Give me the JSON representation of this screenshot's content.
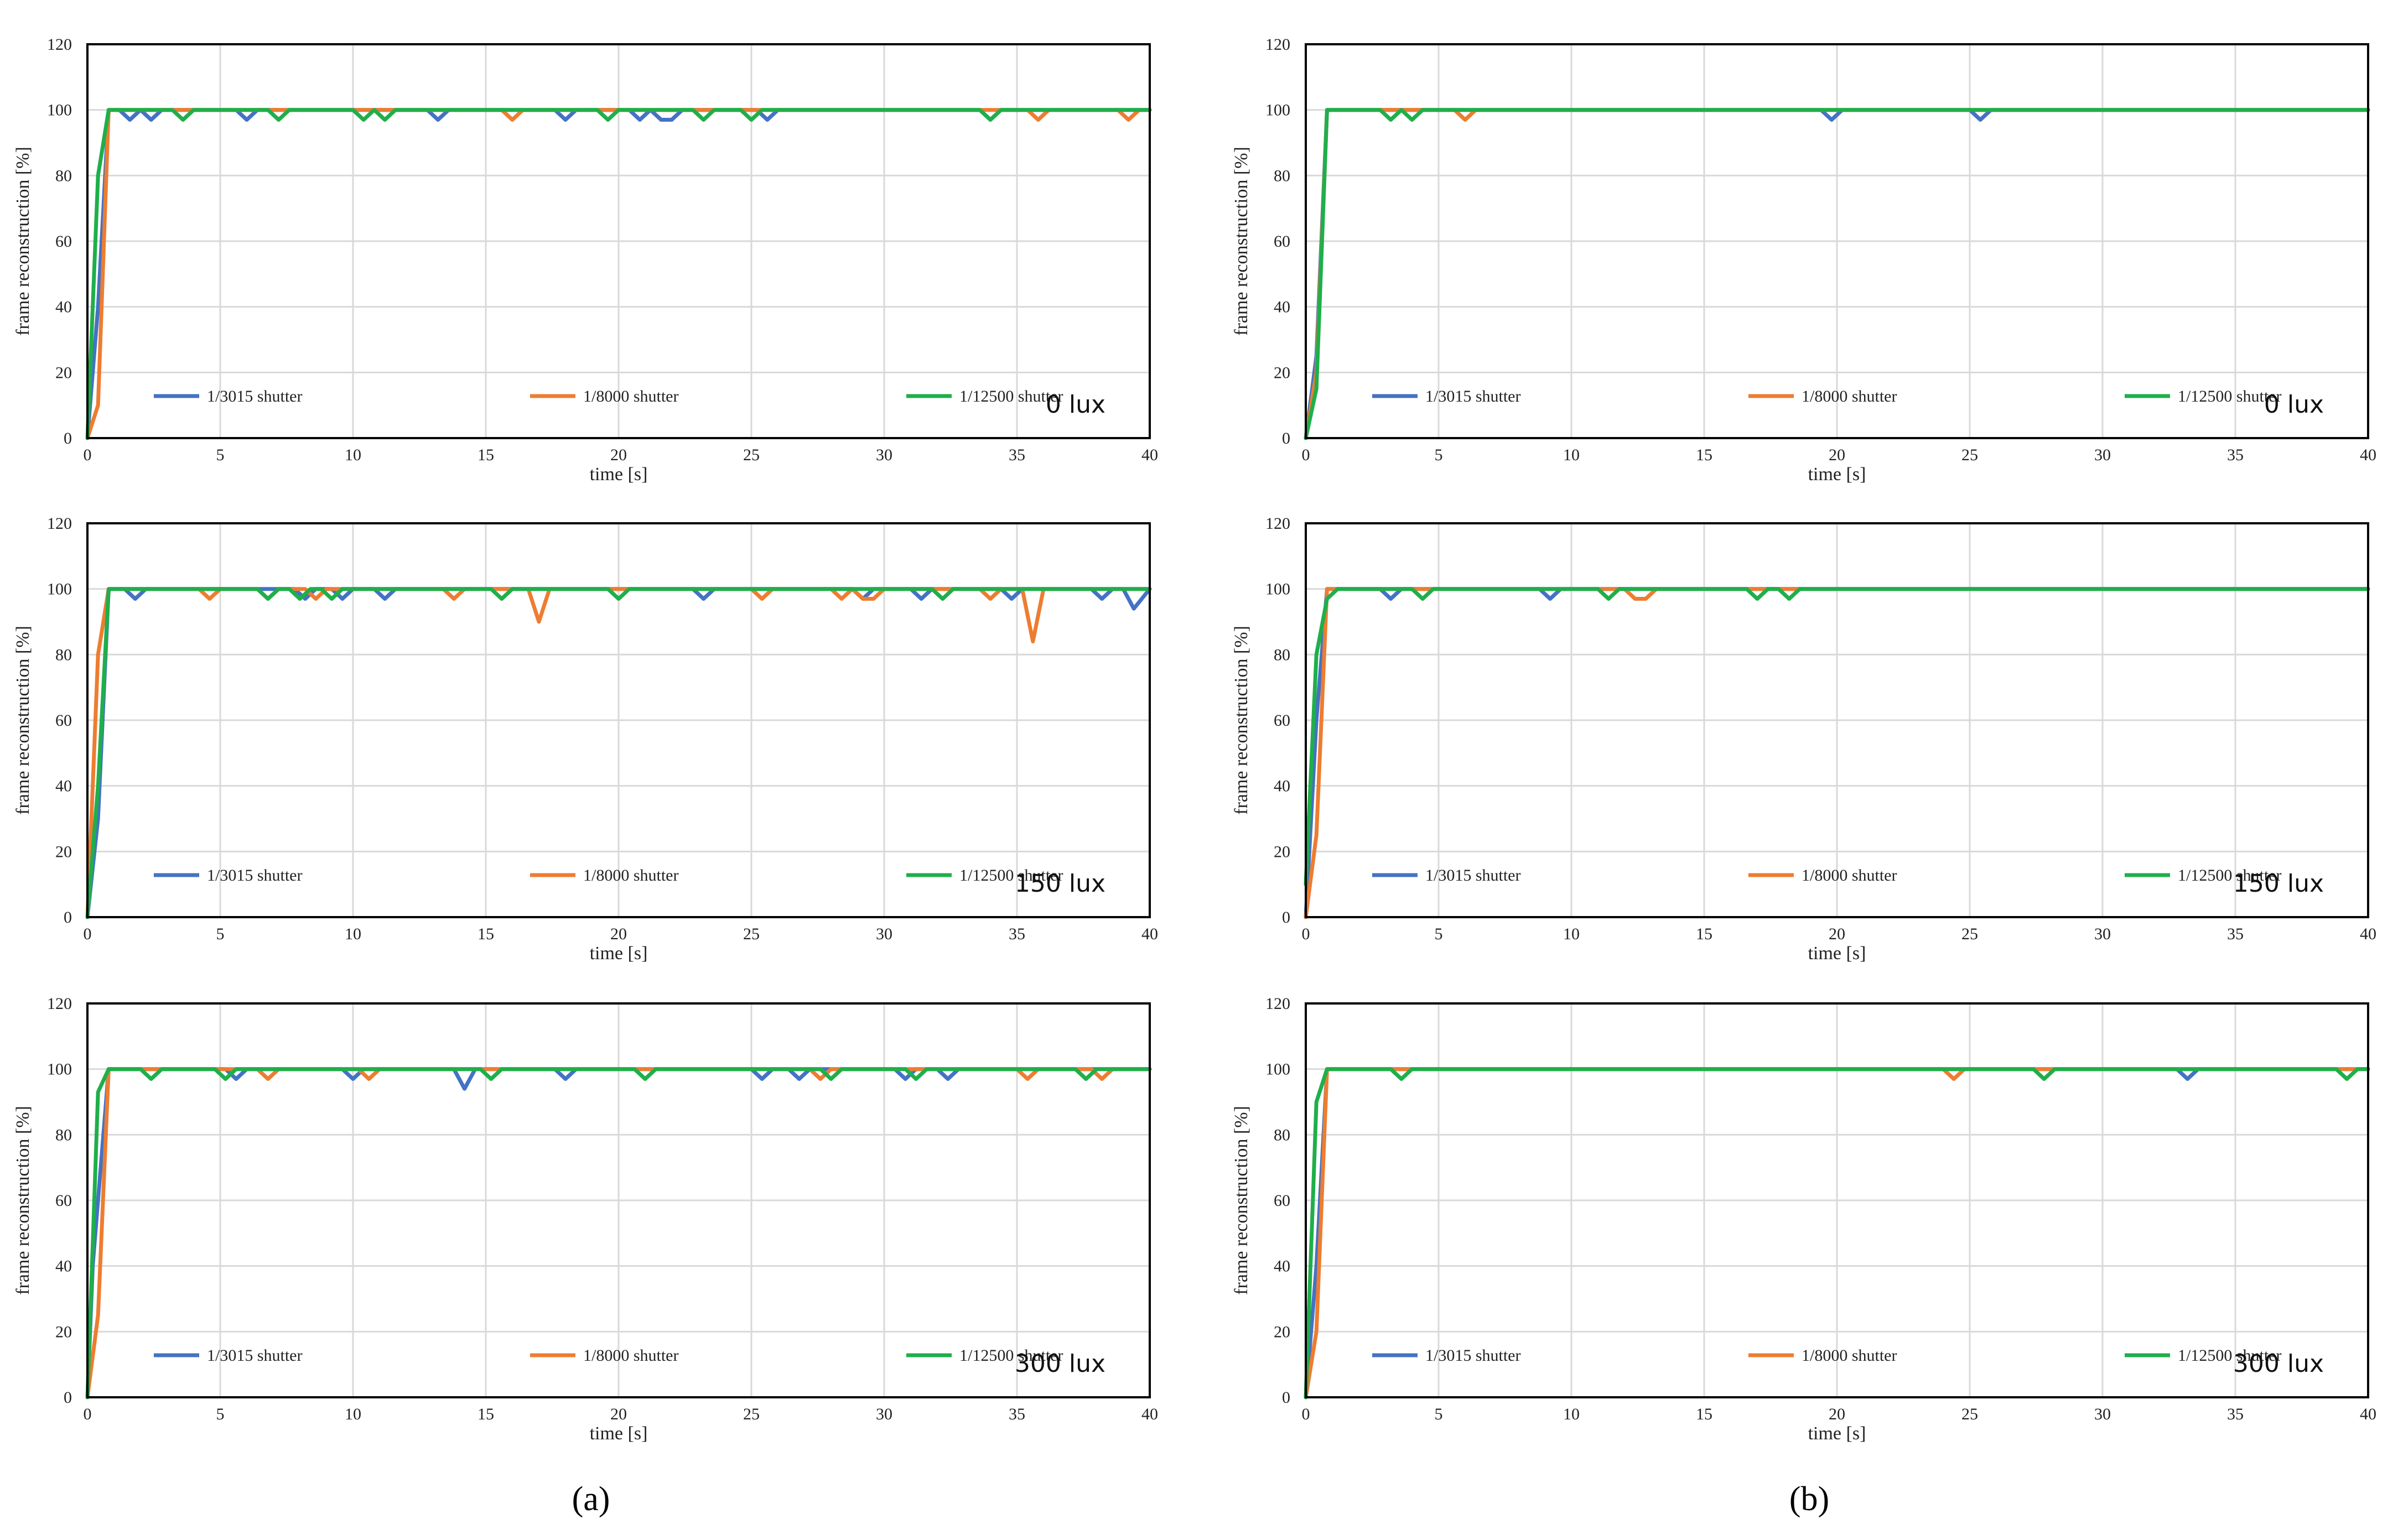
{
  "figure": {
    "panel_labels": [
      "(a)",
      "(b)"
    ]
  },
  "colors": {
    "series": [
      "#4472C4",
      "#ED7D31",
      "#1FAF4A"
    ],
    "grid": "#d9d9d9",
    "frame": "#000000"
  },
  "chart_data": [
    {
      "type": "line",
      "column": "a",
      "row": 0,
      "condition": "0 lux",
      "xlabel": "time [s]",
      "ylabel": "frame reconstruction [%]",
      "xlim": [
        0,
        40
      ],
      "ylim": [
        0,
        120
      ],
      "xticks": [
        0,
        5,
        10,
        15,
        20,
        25,
        30,
        35,
        40
      ],
      "yticks": [
        0,
        20,
        40,
        60,
        80,
        100,
        120
      ],
      "legend_position": "bottom-left",
      "series": [
        {
          "name": "1/3015 shutter",
          "x": [
            0,
            0.4,
            0.8,
            1.2,
            1.6,
            2.0,
            2.4,
            2.8,
            3.2,
            5.6,
            6.0,
            6.4,
            12.8,
            13.2,
            13.6,
            17.6,
            18.0,
            18.4,
            20.4,
            20.8,
            21.2,
            21.6,
            22.0,
            22.4,
            25.2,
            25.6,
            26.0,
            33.6,
            34.0,
            34.4,
            40
          ],
          "values": [
            0,
            40,
            100,
            100,
            97,
            100,
            97,
            100,
            100,
            100,
            97,
            100,
            100,
            97,
            100,
            100,
            97,
            100,
            100,
            97,
            100,
            97,
            97,
            100,
            100,
            97,
            100,
            100,
            97,
            100,
            100
          ]
        },
        {
          "name": "1/8000 shutter",
          "x": [
            0,
            0.4,
            0.8,
            1.2,
            15.6,
            16.0,
            16.4,
            19.6,
            20.0,
            35.4,
            35.8,
            36.2,
            38.8,
            39.2,
            39.6,
            40
          ],
          "values": [
            0,
            10,
            100,
            100,
            100,
            97,
            100,
            100,
            100,
            100,
            97,
            100,
            100,
            97,
            100,
            100
          ]
        },
        {
          "name": "1/12500 shutter",
          "x": [
            0,
            0.4,
            0.8,
            1.2,
            3.2,
            3.6,
            4.0,
            6.8,
            7.2,
            7.6,
            10.0,
            10.4,
            10.8,
            11.2,
            11.6,
            19.2,
            19.6,
            20.0,
            22.8,
            23.2,
            23.6,
            24.6,
            25.0,
            25.4,
            33.6,
            34.0,
            34.4,
            40
          ],
          "values": [
            0,
            80,
            100,
            100,
            100,
            97,
            100,
            100,
            97,
            100,
            100,
            97,
            100,
            97,
            100,
            100,
            97,
            100,
            100,
            97,
            100,
            100,
            97,
            100,
            100,
            97,
            100,
            100
          ]
        }
      ]
    },
    {
      "type": "line",
      "column": "a",
      "row": 1,
      "condition": "150 lux",
      "xlabel": "time [s]",
      "ylabel": "frame reconstruction [%]",
      "xlim": [
        0,
        40
      ],
      "ylim": [
        0,
        120
      ],
      "xticks": [
        0,
        5,
        10,
        15,
        20,
        25,
        30,
        35,
        40
      ],
      "yticks": [
        0,
        20,
        40,
        60,
        80,
        100,
        120
      ],
      "legend_position": "bottom-left",
      "series": [
        {
          "name": "1/3015 shutter",
          "x": [
            0,
            0.4,
            0.8,
            1.4,
            1.8,
            2.2,
            7.8,
            8.2,
            8.6,
            9.2,
            9.6,
            10.0,
            10.8,
            11.2,
            11.6,
            22.8,
            23.2,
            23.6,
            28.8,
            29.2,
            29.6,
            31.0,
            31.4,
            31.8,
            34.4,
            34.8,
            35.2,
            37.8,
            38.2,
            38.6,
            39.0,
            39.4,
            40
          ],
          "values": [
            0,
            30,
            100,
            100,
            97,
            100,
            100,
            97,
            100,
            100,
            97,
            100,
            100,
            97,
            100,
            100,
            97,
            100,
            100,
            97,
            100,
            100,
            97,
            100,
            100,
            97,
            100,
            100,
            97,
            100,
            100,
            94,
            100
          ]
        },
        {
          "name": "1/8000 shutter",
          "x": [
            0,
            0.4,
            0.8,
            4.2,
            4.6,
            5.0,
            6.4,
            6.8,
            7.2,
            8.2,
            8.6,
            9.0,
            13.4,
            13.8,
            14.2,
            16.6,
            17.0,
            17.4,
            25.0,
            25.4,
            25.8,
            28.0,
            28.4,
            28.8,
            29.2,
            29.6,
            30.0,
            33.6,
            34.0,
            34.4,
            35.2,
            35.6,
            36.0,
            40
          ],
          "values": [
            0,
            80,
            100,
            100,
            97,
            100,
            100,
            97,
            100,
            100,
            97,
            100,
            100,
            97,
            100,
            100,
            90,
            100,
            100,
            97,
            100,
            100,
            97,
            100,
            97,
            97,
            100,
            100,
            97,
            100,
            100,
            84,
            100,
            100
          ]
        },
        {
          "name": "1/12500 shutter",
          "x": [
            0,
            0.4,
            0.8,
            6.4,
            6.8,
            7.2,
            7.6,
            8.0,
            8.4,
            8.8,
            9.2,
            9.6,
            15.2,
            15.6,
            16.0,
            19.6,
            20.0,
            20.4,
            31.8,
            32.2,
            32.6,
            40
          ],
          "values": [
            0,
            40,
            100,
            100,
            97,
            100,
            100,
            97,
            100,
            100,
            97,
            100,
            100,
            97,
            100,
            100,
            97,
            100,
            100,
            97,
            100,
            100
          ]
        }
      ]
    },
    {
      "type": "line",
      "column": "a",
      "row": 2,
      "condition": "300 lux",
      "xlabel": "time [s]",
      "ylabel": "frame reconstruction [%]",
      "xlim": [
        0,
        40
      ],
      "ylim": [
        0,
        120
      ],
      "xticks": [
        0,
        5,
        10,
        15,
        20,
        25,
        30,
        35,
        40
      ],
      "yticks": [
        0,
        20,
        40,
        60,
        80,
        100,
        120
      ],
      "legend_position": "bottom-left",
      "series": [
        {
          "name": "1/3015 shutter",
          "x": [
            0,
            0.2,
            0.8,
            5.2,
            5.6,
            6.0,
            9.6,
            10.0,
            10.4,
            13.8,
            14.2,
            14.6,
            17.6,
            18.0,
            18.4,
            25.0,
            25.4,
            25.8,
            26.4,
            26.8,
            27.2,
            30.4,
            30.8,
            31.2,
            32.0,
            32.4,
            32.8,
            40
          ],
          "values": [
            0,
            40,
            100,
            100,
            97,
            100,
            100,
            97,
            100,
            100,
            94,
            100,
            100,
            97,
            100,
            100,
            97,
            100,
            100,
            97,
            100,
            100,
            97,
            100,
            100,
            97,
            100,
            100
          ]
        },
        {
          "name": "1/8000 shutter",
          "x": [
            0,
            0.4,
            0.8,
            6.4,
            6.8,
            7.2,
            10.2,
            10.6,
            11.0,
            20.8,
            21.2,
            27.2,
            27.6,
            28.0,
            35.0,
            35.4,
            35.8,
            37.8,
            38.2,
            38.6,
            40
          ],
          "values": [
            0,
            25,
            100,
            100,
            97,
            100,
            100,
            97,
            100,
            100,
            100,
            100,
            97,
            100,
            100,
            97,
            100,
            100,
            97,
            100,
            100
          ]
        },
        {
          "name": "1/12500 shutter",
          "x": [
            0,
            0.4,
            0.8,
            2.0,
            2.4,
            2.8,
            4.8,
            5.2,
            5.6,
            14.8,
            15.2,
            15.6,
            20.6,
            21.0,
            21.4,
            27.6,
            28.0,
            28.4,
            30.8,
            31.2,
            31.6,
            37.2,
            37.6,
            38.0,
            40
          ],
          "values": [
            0,
            93,
            100,
            100,
            97,
            100,
            100,
            97,
            100,
            100,
            97,
            100,
            100,
            97,
            100,
            100,
            97,
            100,
            100,
            97,
            100,
            100,
            97,
            100,
            100
          ]
        }
      ]
    },
    {
      "type": "line",
      "column": "b",
      "row": 0,
      "condition": "0 lux",
      "xlabel": "time [s]",
      "ylabel": "frame reconstruction [%]",
      "xlim": [
        0,
        40
      ],
      "ylim": [
        0,
        120
      ],
      "xticks": [
        0,
        5,
        10,
        15,
        20,
        25,
        30,
        35,
        40
      ],
      "yticks": [
        0,
        20,
        40,
        60,
        80,
        100,
        120
      ],
      "legend_position": "bottom-left",
      "series": [
        {
          "name": "1/3015 shutter",
          "x": [
            0,
            0.4,
            0.8,
            19.4,
            19.8,
            20.2,
            25.0,
            25.4,
            25.8,
            40
          ],
          "values": [
            0,
            25,
            100,
            100,
            97,
            100,
            100,
            97,
            100,
            100
          ]
        },
        {
          "name": "1/8000 shutter",
          "x": [
            0,
            0.4,
            0.8,
            5.6,
            6.0,
            6.4,
            40
          ],
          "values": [
            0,
            20,
            100,
            100,
            97,
            100,
            100
          ]
        },
        {
          "name": "1/12500 shutter",
          "x": [
            0,
            0.4,
            0.8,
            2.8,
            3.2,
            3.6,
            4.0,
            4.4,
            40
          ],
          "values": [
            0,
            15,
            100,
            100,
            97,
            100,
            97,
            100,
            100
          ]
        }
      ]
    },
    {
      "type": "line",
      "column": "b",
      "row": 1,
      "condition": "150 lux",
      "xlabel": "time [s]",
      "ylabel": "frame reconstruction [%]",
      "xlim": [
        0,
        40
      ],
      "ylim": [
        0,
        120
      ],
      "xticks": [
        0,
        5,
        10,
        15,
        20,
        25,
        30,
        35,
        40
      ],
      "yticks": [
        0,
        20,
        40,
        60,
        80,
        100,
        120
      ],
      "legend_position": "bottom-left",
      "series": [
        {
          "name": "1/3015 shutter",
          "x": [
            0,
            0.4,
            0.8,
            2.8,
            3.2,
            3.6,
            8.8,
            9.2,
            9.6,
            40
          ],
          "values": [
            0,
            60,
            100,
            100,
            97,
            100,
            100,
            97,
            100,
            100
          ]
        },
        {
          "name": "1/8000 shutter",
          "x": [
            0,
            0.4,
            0.8,
            12.0,
            12.4,
            12.8,
            13.2,
            16.6,
            17.0,
            17.4,
            40
          ],
          "values": [
            0,
            25,
            100,
            100,
            97,
            97,
            100,
            100,
            100,
            100,
            100
          ]
        },
        {
          "name": "1/12500 shutter",
          "x": [
            0,
            0.4,
            0.8,
            1.2,
            4.0,
            4.4,
            4.8,
            11.0,
            11.4,
            11.8,
            16.6,
            17.0,
            17.4,
            17.8,
            18.2,
            18.6,
            40
          ],
          "values": [
            10,
            80,
            97,
            100,
            100,
            97,
            100,
            100,
            97,
            100,
            100,
            97,
            100,
            100,
            97,
            100,
            100
          ]
        }
      ]
    },
    {
      "type": "line",
      "column": "b",
      "row": 2,
      "condition": "300 lux",
      "xlabel": "time [s]",
      "ylabel": "frame reconstruction [%]",
      "xlim": [
        0,
        40
      ],
      "ylim": [
        0,
        120
      ],
      "xticks": [
        0,
        5,
        10,
        15,
        20,
        25,
        30,
        35,
        40
      ],
      "yticks": [
        0,
        20,
        40,
        60,
        80,
        100,
        120
      ],
      "legend_position": "bottom-left",
      "series": [
        {
          "name": "1/3015 shutter",
          "x": [
            0,
            0.4,
            0.8,
            32.8,
            33.2,
            33.6,
            40
          ],
          "values": [
            0,
            40,
            100,
            100,
            97,
            100,
            100
          ]
        },
        {
          "name": "1/8000 shutter",
          "x": [
            0,
            0.4,
            0.8,
            24.0,
            24.4,
            24.8,
            27.6,
            28.0,
            38.8,
            39.2,
            40
          ],
          "values": [
            0,
            20,
            100,
            100,
            97,
            100,
            100,
            100,
            100,
            100,
            100
          ]
        },
        {
          "name": "1/12500 shutter",
          "x": [
            0,
            0.4,
            0.8,
            3.2,
            3.6,
            4.0,
            27.4,
            27.8,
            28.2,
            38.8,
            39.2,
            39.6,
            40
          ],
          "values": [
            0,
            90,
            100,
            100,
            97,
            100,
            100,
            97,
            100,
            100,
            97,
            100,
            100
          ]
        }
      ]
    }
  ]
}
